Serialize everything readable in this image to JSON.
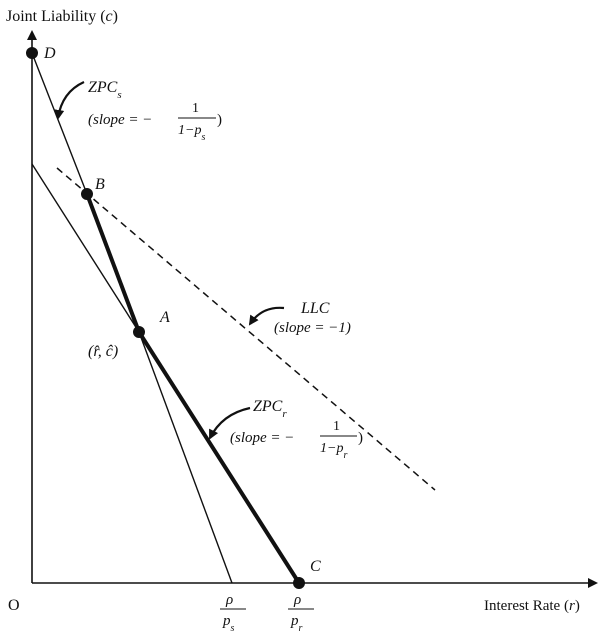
{
  "axes": {
    "y_label_text": "Joint Liability (",
    "y_label_var": "c",
    "x_label_text": "Interest Rate (",
    "x_label_var": "r",
    "close_paren": ")",
    "origin": "O"
  },
  "points": {
    "D": "D",
    "B": "B",
    "A": "A",
    "C": "C",
    "A_coords": "(r̂, ĉ)"
  },
  "curves": {
    "zpc_s": {
      "name": "ZPC",
      "sub": "s",
      "slope_prefix": "(slope = −",
      "numerator": "1",
      "denominator": "1−p",
      "den_sub": "s",
      "slope_suffix": ")"
    },
    "zpc_r": {
      "name": "ZPC",
      "sub": "r",
      "slope_prefix": "(slope = −",
      "numerator": "1",
      "denominator": "1−p",
      "den_sub": "r",
      "slope_suffix": ")"
    },
    "llc": {
      "name": "LLC",
      "slope_text": "(slope = −1)"
    }
  },
  "x_ticks": {
    "ps": {
      "numerator": "ρ",
      "denominator": "p",
      "sub": "s"
    },
    "pr": {
      "numerator": "ρ",
      "denominator": "p",
      "sub": "r"
    }
  }
}
